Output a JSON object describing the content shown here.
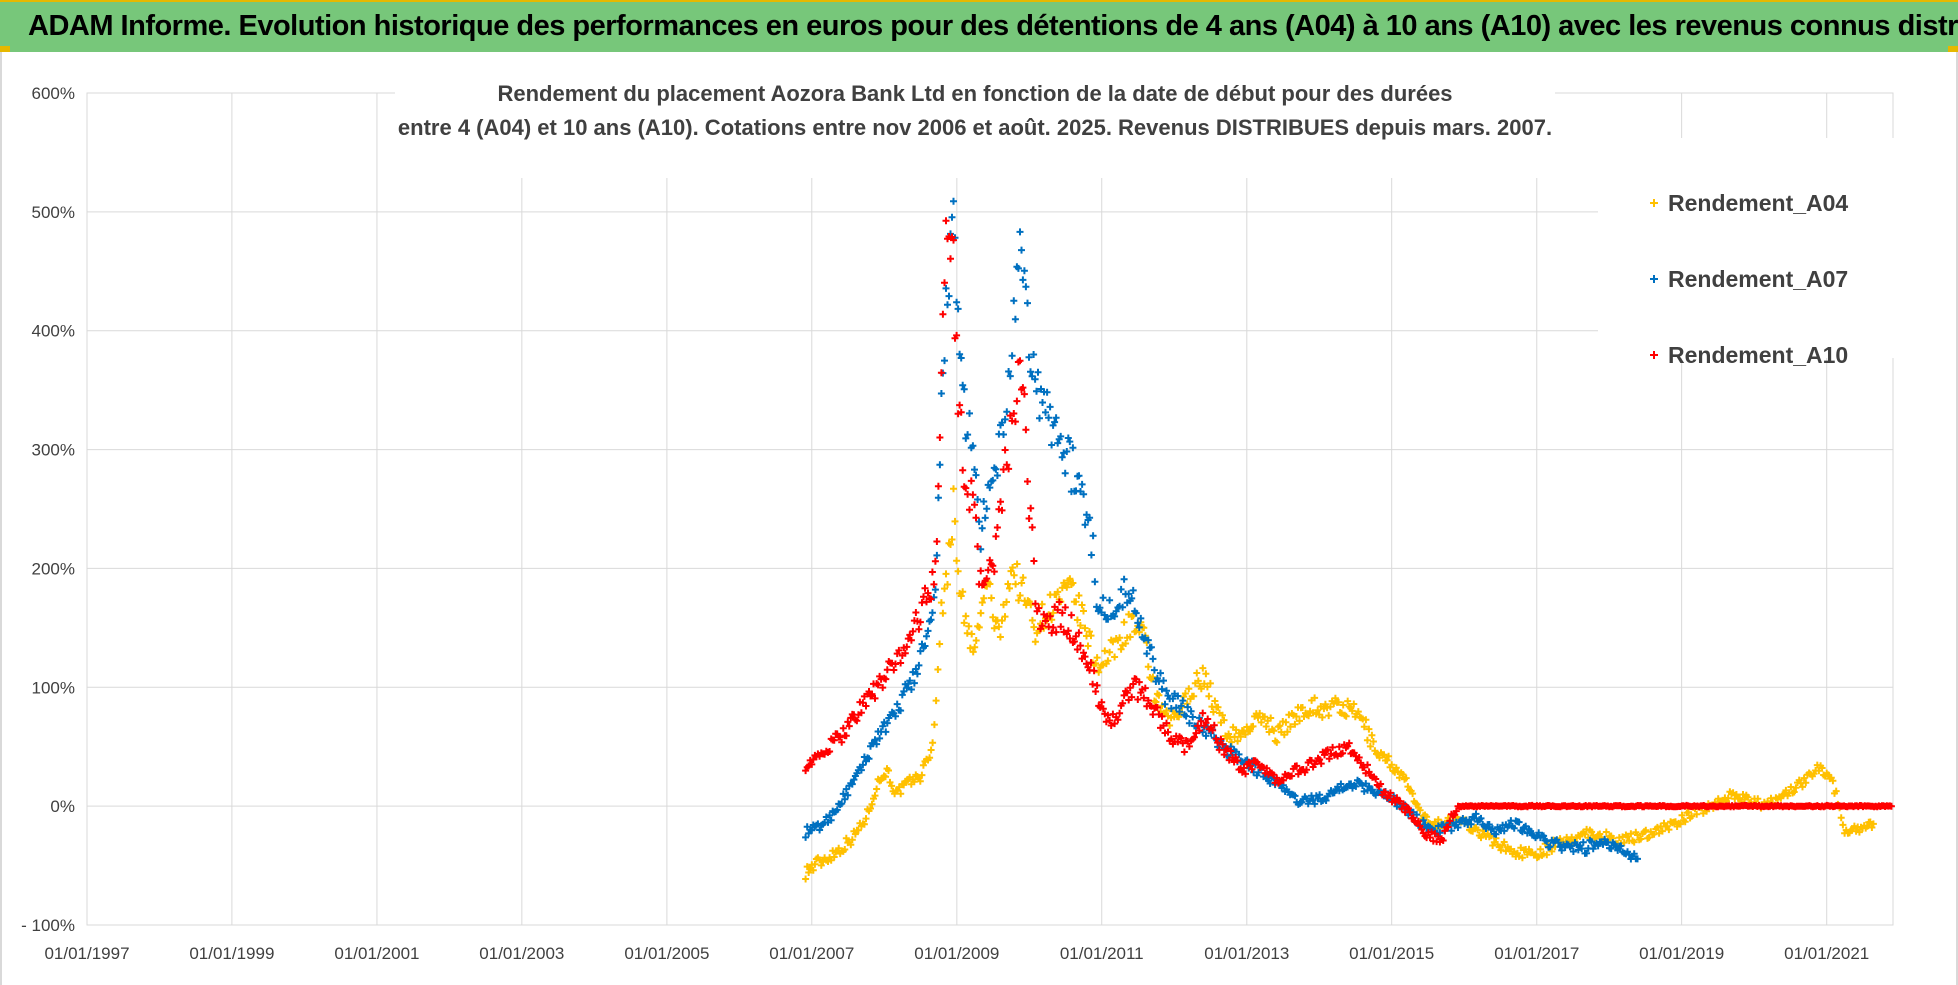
{
  "banner": {
    "title": "ADAM Informe. Evolution historique des performances en euros pour des détentions de 4 ans (A04) à 10 ans (A10) avec les revenus connus distribués"
  },
  "colors": {
    "banner_bg": "#77c77a",
    "a04": "#ffc000",
    "a07": "#0070c0",
    "a10": "#ff0000",
    "grid": "#d9d9d9",
    "text": "#404040"
  },
  "chart_data": {
    "type": "scatter",
    "title": "Rendement du placement Aozora Bank Ltd en fonction de la date de début pour des durées",
    "subtitle": "entre 4 (A04) et 10 ans (A10). Cotations entre nov 2006 et août. 2025. Revenus DISTRIBUES depuis mars. 2007.",
    "xlabel": "",
    "ylabel": "",
    "x_range": [
      "1997-01-01",
      "2021-12-01"
    ],
    "y_range": [
      -100,
      600
    ],
    "y_unit": "%",
    "grid": true,
    "legend_position": "right",
    "x_tick_labels": [
      "01/01/1997",
      "01/01/1999",
      "01/01/2001",
      "01/01/2003",
      "01/01/2005",
      "01/01/2007",
      "01/01/2009",
      "01/01/2011",
      "01/01/2013",
      "01/01/2015",
      "01/01/2017",
      "01/01/2019",
      "01/01/2021"
    ],
    "y_tick_labels": [
      "600%",
      "500%",
      "400%",
      "300%",
      "200%",
      "100%",
      "0%",
      "- 100%"
    ],
    "marker": "+",
    "series": [
      {
        "name": "Rendement_A04",
        "color": "#ffc000",
        "points": [
          [
            "2006-12-01",
            -55
          ],
          [
            "2007-02-01",
            -48
          ],
          [
            "2007-04-01",
            -42
          ],
          [
            "2007-06-01",
            -35
          ],
          [
            "2007-08-01",
            -25
          ],
          [
            "2007-10-01",
            -10
          ],
          [
            "2007-12-01",
            20
          ],
          [
            "2008-01-15",
            30
          ],
          [
            "2008-03-01",
            10
          ],
          [
            "2008-05-01",
            20
          ],
          [
            "2008-07-01",
            25
          ],
          [
            "2008-09-01",
            50
          ],
          [
            "2008-10-15",
            160
          ],
          [
            "2008-11-15",
            200
          ],
          [
            "2008-12-15",
            250
          ],
          [
            "2009-01-15",
            190
          ],
          [
            "2009-02-15",
            150
          ],
          [
            "2009-04-01",
            130
          ],
          [
            "2009-06-01",
            190
          ],
          [
            "2009-08-01",
            140
          ],
          [
            "2009-10-01",
            200
          ],
          [
            "2009-12-01",
            180
          ],
          [
            "2010-02-01",
            150
          ],
          [
            "2010-04-01",
            165
          ],
          [
            "2010-06-01",
            175
          ],
          [
            "2010-08-01",
            180
          ],
          [
            "2010-10-01",
            155
          ],
          [
            "2010-12-01",
            120
          ],
          [
            "2011-02-01",
            125
          ],
          [
            "2011-04-01",
            140
          ],
          [
            "2011-06-01",
            155
          ],
          [
            "2011-08-01",
            140
          ],
          [
            "2011-10-01",
            90
          ],
          [
            "2011-12-01",
            70
          ],
          [
            "2012-02-01",
            80
          ],
          [
            "2012-04-01",
            100
          ],
          [
            "2012-06-01",
            110
          ],
          [
            "2012-08-01",
            80
          ],
          [
            "2012-10-01",
            60
          ],
          [
            "2012-12-01",
            60
          ],
          [
            "2013-02-01",
            70
          ],
          [
            "2013-04-01",
            75
          ],
          [
            "2013-06-01",
            60
          ],
          [
            "2013-08-01",
            70
          ],
          [
            "2013-10-01",
            80
          ],
          [
            "2013-12-01",
            85
          ],
          [
            "2014-02-01",
            80
          ],
          [
            "2014-04-01",
            85
          ],
          [
            "2014-06-01",
            80
          ],
          [
            "2014-08-01",
            75
          ],
          [
            "2014-10-01",
            50
          ],
          [
            "2014-12-01",
            40
          ],
          [
            "2015-02-01",
            30
          ],
          [
            "2015-04-01",
            15
          ],
          [
            "2015-06-01",
            -10
          ],
          [
            "2015-09-01",
            -15
          ],
          [
            "2015-12-01",
            -10
          ],
          [
            "2016-03-01",
            -20
          ],
          [
            "2016-06-01",
            -30
          ],
          [
            "2016-09-01",
            -38
          ],
          [
            "2016-12-01",
            -40
          ],
          [
            "2017-03-01",
            -35
          ],
          [
            "2017-06-01",
            -30
          ],
          [
            "2017-09-01",
            -22
          ],
          [
            "2017-12-01",
            -25
          ],
          [
            "2018-03-01",
            -30
          ],
          [
            "2018-06-01",
            -25
          ],
          [
            "2018-09-01",
            -20
          ],
          [
            "2018-12-01",
            -15
          ],
          [
            "2019-03-01",
            -5
          ],
          [
            "2019-06-01",
            0
          ],
          [
            "2019-09-01",
            10
          ],
          [
            "2019-12-01",
            5
          ],
          [
            "2020-03-01",
            0
          ],
          [
            "2020-06-01",
            10
          ],
          [
            "2020-09-01",
            20
          ],
          [
            "2020-12-01",
            35
          ],
          [
            "2021-02-01",
            20
          ],
          [
            "2021-04-01",
            -20
          ],
          [
            "2021-07-01",
            -18
          ],
          [
            "2021-09-01",
            -15
          ]
        ]
      },
      {
        "name": "Rendement_A07",
        "color": "#0070c0",
        "points": [
          [
            "2006-12-01",
            -22
          ],
          [
            "2007-02-01",
            -18
          ],
          [
            "2007-04-01",
            -10
          ],
          [
            "2007-06-01",
            5
          ],
          [
            "2007-08-01",
            20
          ],
          [
            "2007-10-01",
            40
          ],
          [
            "2007-12-01",
            60
          ],
          [
            "2008-02-01",
            70
          ],
          [
            "2008-04-01",
            90
          ],
          [
            "2008-06-01",
            110
          ],
          [
            "2008-08-01",
            140
          ],
          [
            "2008-09-15",
            170
          ],
          [
            "2008-10-15",
            330
          ],
          [
            "2008-11-15",
            450
          ],
          [
            "2008-12-15",
            480
          ],
          [
            "2009-01-15",
            380
          ],
          [
            "2009-02-15",
            330
          ],
          [
            "2009-03-15",
            300
          ],
          [
            "2009-05-01",
            230
          ],
          [
            "2009-07-01",
            270
          ],
          [
            "2009-09-01",
            330
          ],
          [
            "2009-10-15",
            400
          ],
          [
            "2009-11-15",
            460
          ],
          [
            "2009-12-15",
            420
          ],
          [
            "2010-01-15",
            370
          ],
          [
            "2010-03-01",
            340
          ],
          [
            "2010-05-01",
            320
          ],
          [
            "2010-07-01",
            300
          ],
          [
            "2010-09-01",
            270
          ],
          [
            "2010-11-01",
            240
          ],
          [
            "2010-12-15",
            170
          ],
          [
            "2011-02-01",
            160
          ],
          [
            "2011-04-01",
            180
          ],
          [
            "2011-06-01",
            175
          ],
          [
            "2011-08-01",
            150
          ],
          [
            "2011-10-01",
            110
          ],
          [
            "2011-12-01",
            90
          ],
          [
            "2012-03-01",
            80
          ],
          [
            "2012-06-01",
            65
          ],
          [
            "2012-09-01",
            50
          ],
          [
            "2012-12-01",
            40
          ],
          [
            "2013-03-01",
            30
          ],
          [
            "2013-06-01",
            20
          ],
          [
            "2013-09-01",
            5
          ],
          [
            "2013-12-01",
            5
          ],
          [
            "2014-03-01",
            10
          ],
          [
            "2014-06-01",
            20
          ],
          [
            "2014-09-01",
            15
          ],
          [
            "2014-12-01",
            10
          ],
          [
            "2015-03-01",
            0
          ],
          [
            "2015-06-01",
            -15
          ],
          [
            "2015-09-01",
            -20
          ],
          [
            "2015-12-01",
            -15
          ],
          [
            "2016-03-01",
            -10
          ],
          [
            "2016-06-01",
            -20
          ],
          [
            "2016-09-01",
            -15
          ],
          [
            "2016-12-01",
            -20
          ],
          [
            "2017-03-01",
            -30
          ],
          [
            "2017-06-01",
            -35
          ],
          [
            "2017-09-01",
            -35
          ],
          [
            "2017-12-01",
            -30
          ],
          [
            "2018-03-01",
            -38
          ],
          [
            "2018-06-01",
            -42
          ]
        ]
      },
      {
        "name": "Rendement_A10",
        "color": "#ff0000",
        "points": [
          [
            "2006-12-01",
            35
          ],
          [
            "2007-02-01",
            40
          ],
          [
            "2007-04-01",
            50
          ],
          [
            "2007-06-01",
            60
          ],
          [
            "2007-08-01",
            75
          ],
          [
            "2007-10-01",
            90
          ],
          [
            "2007-12-01",
            100
          ],
          [
            "2008-02-01",
            115
          ],
          [
            "2008-04-01",
            130
          ],
          [
            "2008-06-01",
            150
          ],
          [
            "2008-08-01",
            175
          ],
          [
            "2008-09-15",
            200
          ],
          [
            "2008-10-15",
            350
          ],
          [
            "2008-11-15",
            510
          ],
          [
            "2008-12-15",
            450
          ],
          [
            "2009-01-15",
            320
          ],
          [
            "2009-02-15",
            280
          ],
          [
            "2009-03-15",
            260
          ],
          [
            "2009-05-01",
            190
          ],
          [
            "2009-07-01",
            200
          ],
          [
            "2009-09-01",
            280
          ],
          [
            "2009-10-15",
            330
          ],
          [
            "2009-11-15",
            360
          ],
          [
            "2009-12-15",
            310
          ],
          [
            "2010-02-01",
            170
          ],
          [
            "2010-04-01",
            150
          ],
          [
            "2010-06-01",
            160
          ],
          [
            "2010-08-01",
            150
          ],
          [
            "2010-10-01",
            130
          ],
          [
            "2010-12-01",
            100
          ],
          [
            "2011-02-01",
            70
          ],
          [
            "2011-04-01",
            80
          ],
          [
            "2011-06-01",
            100
          ],
          [
            "2011-08-01",
            95
          ],
          [
            "2011-10-01",
            80
          ],
          [
            "2011-12-01",
            60
          ],
          [
            "2012-03-01",
            50
          ],
          [
            "2012-06-01",
            75
          ],
          [
            "2012-09-01",
            50
          ],
          [
            "2012-12-01",
            30
          ],
          [
            "2013-03-01",
            35
          ],
          [
            "2013-06-01",
            20
          ],
          [
            "2013-09-01",
            30
          ],
          [
            "2013-12-01",
            35
          ],
          [
            "2014-03-01",
            45
          ],
          [
            "2014-06-01",
            50
          ],
          [
            "2014-09-01",
            30
          ],
          [
            "2014-12-01",
            10
          ],
          [
            "2015-03-01",
            0
          ],
          [
            "2015-06-01",
            -20
          ],
          [
            "2015-09-01",
            -30
          ],
          [
            "2015-12-01",
            0
          ],
          [
            "2016-06-01",
            0
          ],
          [
            "2016-12-01",
            0
          ],
          [
            "2017-06-01",
            0
          ],
          [
            "2017-12-01",
            0
          ],
          [
            "2018-06-01",
            0
          ],
          [
            "2018-12-01",
            0
          ],
          [
            "2019-06-01",
            0
          ],
          [
            "2019-12-01",
            0
          ],
          [
            "2020-06-01",
            0
          ],
          [
            "2020-12-01",
            0
          ],
          [
            "2021-06-01",
            0
          ],
          [
            "2021-12-01",
            0
          ]
        ]
      }
    ]
  }
}
